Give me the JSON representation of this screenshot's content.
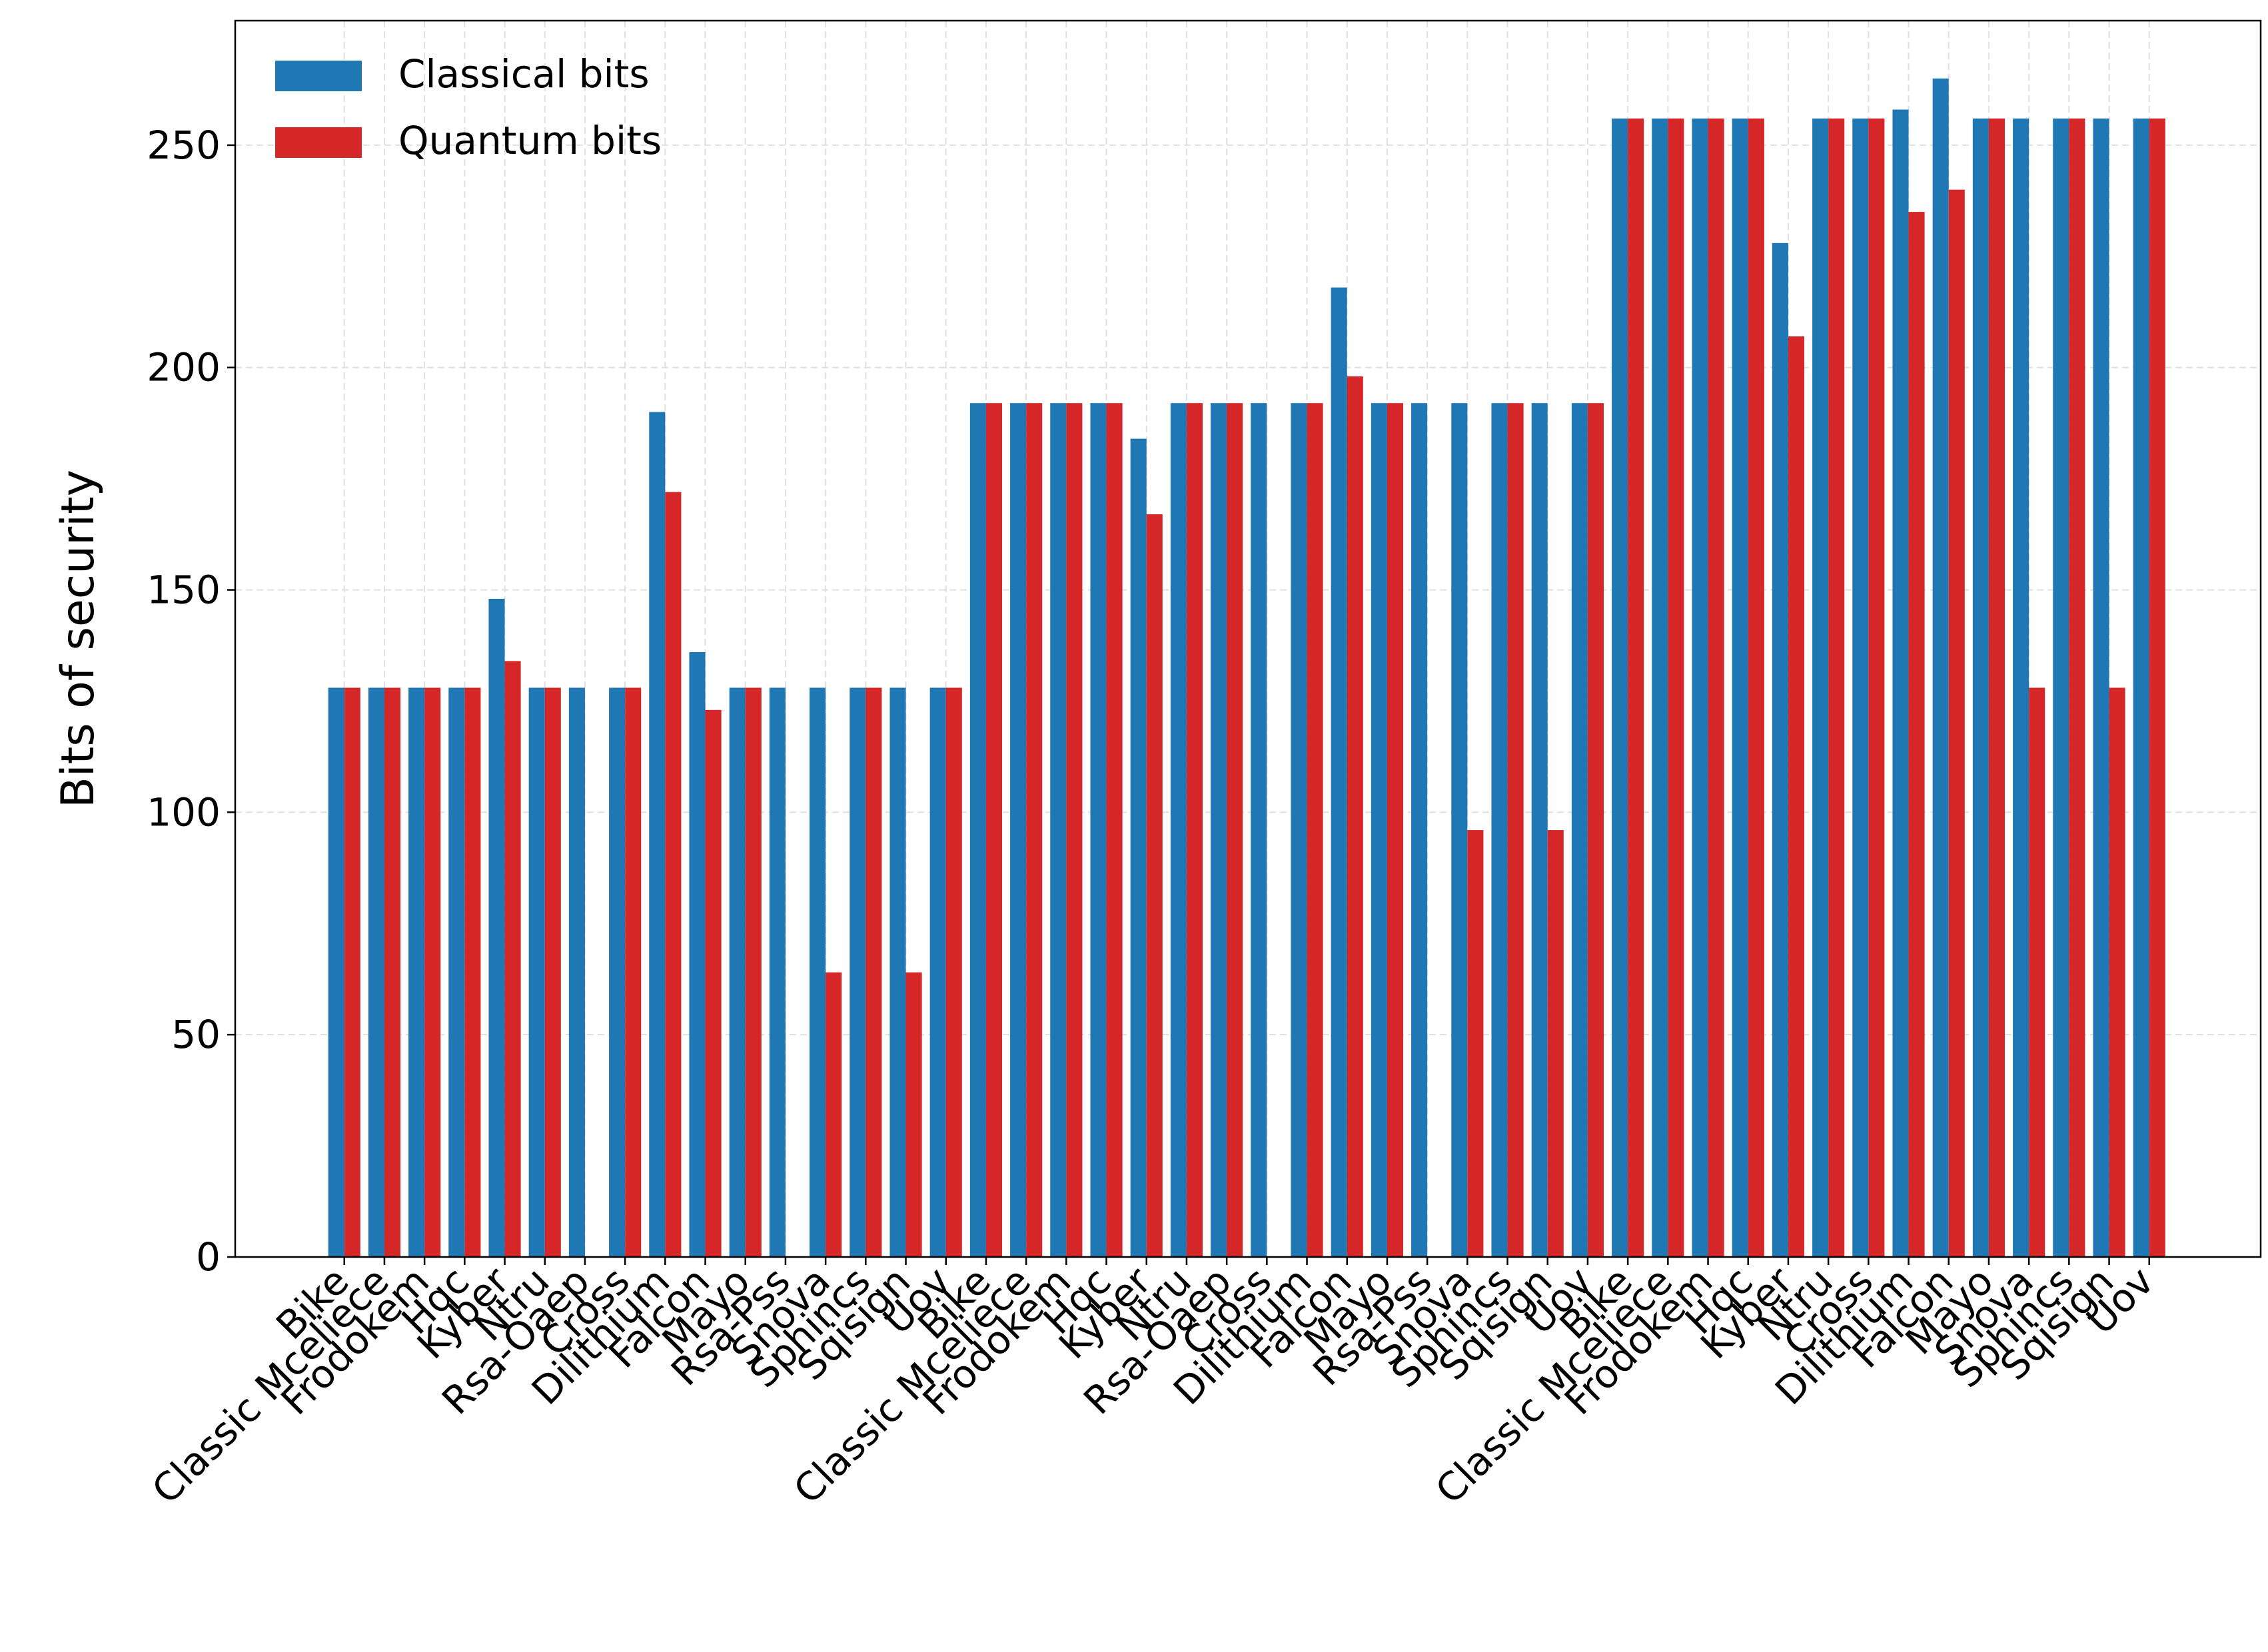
{
  "chart_data": {
    "type": "bar",
    "ylabel": "Bits of security",
    "categories": [
      "Bike",
      "Classic Mceliece",
      "Frodokem",
      "Hqc",
      "Kyber",
      "Ntru",
      "Rsa-Oaep",
      "Cross",
      "Dilithium",
      "Falcon",
      "Mayo",
      "Rsa-Pss",
      "Snova",
      "Sphincs",
      "Sqisign",
      "Uov",
      "Bike",
      "Classic Mceliece",
      "Frodokem",
      "Hqc",
      "Kyber",
      "Ntru",
      "Rsa-Oaep",
      "Cross",
      "Dilithium",
      "Falcon",
      "Mayo",
      "Rsa-Pss",
      "Snova",
      "Sphincs",
      "Sqisign",
      "Uov",
      "Bike",
      "Classic Mceliece",
      "Frodokem",
      "Hqc",
      "Kyber",
      "Ntru",
      "Cross",
      "Dilithium",
      "Falcon",
      "Mayo",
      "Snova",
      "Sphincs",
      "Sqisign",
      "Uov"
    ],
    "series": [
      {
        "name": "Classical bits",
        "color": "#1f77b4",
        "values": [
          128,
          128,
          128,
          128,
          148,
          128,
          128,
          128,
          190,
          136,
          128,
          128,
          128,
          128,
          128,
          128,
          192,
          192,
          192,
          192,
          184,
          192,
          192,
          192,
          192,
          218,
          192,
          192,
          192,
          192,
          192,
          192,
          256,
          256,
          256,
          256,
          228,
          256,
          256,
          258,
          265,
          256,
          256,
          256,
          256,
          256
        ]
      },
      {
        "name": "Quantum bits",
        "color": "#d62728",
        "values": [
          128,
          128,
          128,
          128,
          134,
          128,
          null,
          128,
          172,
          123,
          128,
          null,
          64,
          128,
          64,
          128,
          192,
          192,
          192,
          192,
          167,
          192,
          192,
          null,
          192,
          198,
          192,
          null,
          96,
          192,
          96,
          192,
          256,
          256,
          256,
          256,
          207,
          256,
          256,
          235,
          240,
          256,
          128,
          256,
          128,
          256
        ]
      }
    ],
    "ylim": [
      0,
      278
    ],
    "yticks": [
      0,
      50,
      100,
      150,
      200,
      250
    ],
    "grid": true,
    "legend": "upper left"
  }
}
